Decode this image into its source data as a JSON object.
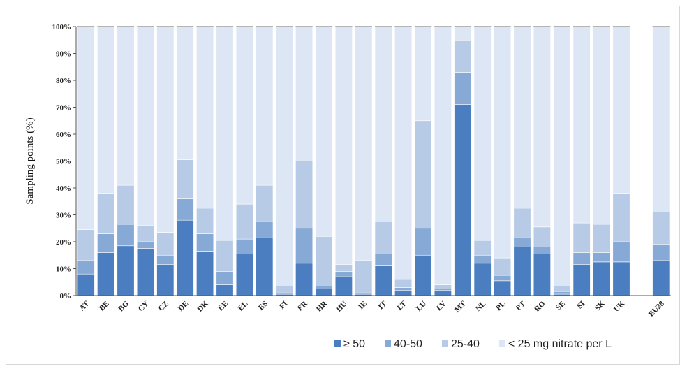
{
  "chart_data": {
    "type": "bar",
    "stacked": true,
    "ylabel": "Sampling points (%)",
    "xlabel": "",
    "ylim": [
      0,
      100
    ],
    "yticks": [
      "0%",
      "10%",
      "20%",
      "30%",
      "40%",
      "50%",
      "60%",
      "70%",
      "80%",
      "90%",
      "100%"
    ],
    "categories": [
      "AT",
      "BE",
      "BG",
      "CY",
      "CZ",
      "DE",
      "DK",
      "EE",
      "EL",
      "ES",
      "FI",
      "FR",
      "HR",
      "HU",
      "IE",
      "IT",
      "LT",
      "LU",
      "LV",
      "MT",
      "NL",
      "PL",
      "PT",
      "RO",
      "SE",
      "SI",
      "SK",
      "UK",
      "",
      "EU28"
    ],
    "series": [
      {
        "name": "≥ 50",
        "color": "#4a7ec0",
        "values": [
          8,
          16,
          18.5,
          17.5,
          11.5,
          28,
          16.5,
          4,
          15.5,
          21.5,
          0.5,
          12,
          2.5,
          7,
          0.5,
          11,
          2,
          15,
          2,
          71,
          12,
          5.5,
          18,
          15.5,
          0.5,
          11.5,
          12.5,
          12.5,
          null,
          13
        ]
      },
      {
        "name": "40-50",
        "color": "#86a9d6",
        "values": [
          5,
          7,
          8,
          2.5,
          3.5,
          8,
          6.5,
          5,
          5.5,
          6,
          0.5,
          13,
          1,
          2,
          0.5,
          4.5,
          1,
          10,
          0.5,
          12,
          3,
          2,
          3.5,
          2.5,
          1,
          4.5,
          3.5,
          7.5,
          null,
          6
        ]
      },
      {
        "name": "25-40",
        "color": "#b7cbe6",
        "values": [
          11.5,
          15,
          14.5,
          6,
          8.5,
          14.5,
          9.5,
          11.5,
          13,
          13.5,
          2.5,
          25,
          18.5,
          2.5,
          12,
          12,
          3,
          40,
          1.5,
          12,
          5.5,
          6.5,
          11,
          7.5,
          2,
          11,
          10.5,
          18,
          null,
          12
        ]
      },
      {
        "name": "< 25 mg nitrate per L",
        "color": "#dde6f4",
        "values": [
          75.5,
          62,
          59,
          74,
          76.5,
          49.5,
          67.5,
          79.5,
          66,
          59,
          96.5,
          50,
          78,
          88.5,
          87,
          72.5,
          94,
          35,
          96,
          5,
          79.5,
          86,
          67.5,
          74.5,
          96.5,
          73,
          73.5,
          62,
          null,
          69
        ]
      }
    ],
    "legend": {
      "placement": "bottom-right"
    },
    "grid": false
  }
}
